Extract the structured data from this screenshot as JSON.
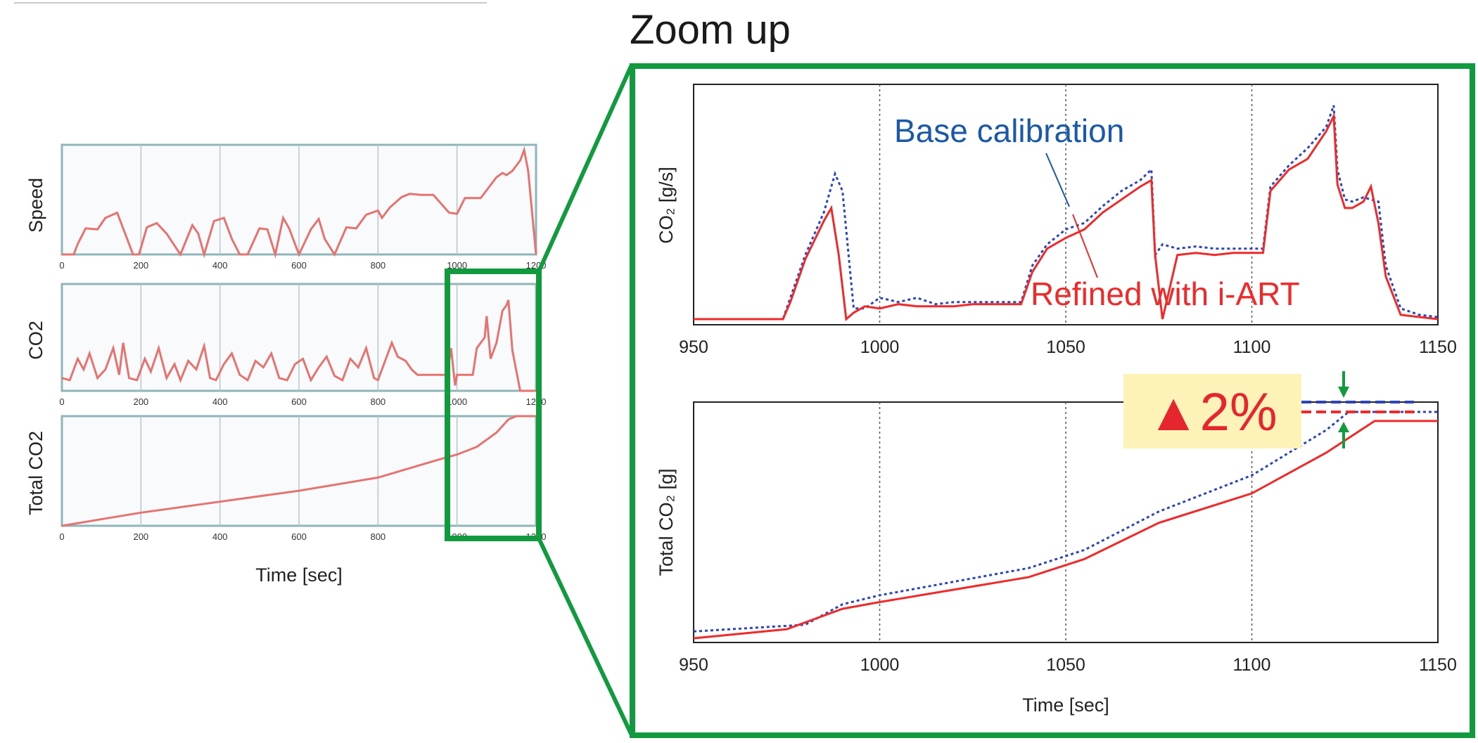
{
  "zoom_title": "Zoom up",
  "colors": {
    "frame": "#129a3e",
    "base_series": "#2b45b8",
    "refined_series": "#ee2a2a",
    "base_annotation_text": "#1a58a8",
    "refined_annotation_text": "#ee2a2a",
    "badge_bg": "#fdf2b8",
    "badge_text": "#e5262e",
    "overview_line": "#e5736f",
    "overview_frame": "#8fb5b8",
    "overview_plot_bg": "#f8fafc",
    "axis": "#222222"
  },
  "chart_data": [
    {
      "id": "overview-speed",
      "type": "line",
      "ylabel": "Speed",
      "xlim": [
        0,
        1200
      ],
      "xticks": [
        "0",
        "200",
        "400",
        "600",
        "800",
        "1000",
        "1200"
      ],
      "series": [
        {
          "x": [
            0,
            30,
            40,
            60,
            90,
            110,
            140,
            165,
            180,
            195,
            215,
            240,
            265,
            300,
            330,
            345,
            360,
            385,
            410,
            430,
            450,
            470,
            500,
            520,
            540,
            560,
            575,
            600,
            630,
            650,
            665,
            690,
            720,
            745,
            770,
            800,
            810,
            830,
            860,
            880,
            910,
            940,
            980,
            1000,
            1020,
            1060,
            1080,
            1100,
            1115,
            1125,
            1140,
            1160,
            1170,
            1180,
            1190,
            1200
          ],
          "values": [
            0,
            0,
            10,
            25,
            24,
            35,
            40,
            15,
            0,
            0,
            26,
            30,
            20,
            0,
            28,
            20,
            0,
            32,
            35,
            15,
            0,
            0,
            25,
            24,
            0,
            35,
            25,
            0,
            24,
            34,
            15,
            0,
            26,
            25,
            38,
            42,
            35,
            45,
            55,
            58,
            57,
            57,
            40,
            39,
            54,
            54,
            64,
            74,
            78,
            76,
            80,
            90,
            100,
            80,
            40,
            0
          ]
        }
      ]
    },
    {
      "id": "overview-co2",
      "type": "line",
      "ylabel": "CO2",
      "xlim": [
        0,
        1200
      ],
      "xticks": [
        "0",
        "200",
        "400",
        "600",
        "800",
        "1000",
        "1200"
      ],
      "series": [
        {
          "x": [
            0,
            20,
            40,
            55,
            70,
            90,
            110,
            130,
            145,
            155,
            170,
            190,
            210,
            225,
            245,
            265,
            285,
            300,
            320,
            340,
            360,
            375,
            390,
            410,
            430,
            450,
            470,
            490,
            510,
            530,
            550,
            570,
            590,
            610,
            630,
            650,
            670,
            690,
            710,
            730,
            750,
            770,
            790,
            800,
            820,
            835,
            850,
            870,
            885,
            900,
            920,
            950,
            975,
            985,
            995,
            1000,
            1040,
            1050,
            1070,
            1075,
            1085,
            1100,
            1115,
            1125,
            1130,
            1140,
            1160,
            1200
          ],
          "values": [
            0.12,
            0.1,
            0.3,
            0.2,
            0.35,
            0.12,
            0.2,
            0.4,
            0.15,
            0.45,
            0.12,
            0.1,
            0.3,
            0.18,
            0.4,
            0.12,
            0.25,
            0.1,
            0.28,
            0.2,
            0.42,
            0.12,
            0.1,
            0.25,
            0.35,
            0.15,
            0.1,
            0.28,
            0.22,
            0.35,
            0.12,
            0.1,
            0.25,
            0.3,
            0.1,
            0.22,
            0.32,
            0.14,
            0.1,
            0.3,
            0.22,
            0.4,
            0.12,
            0.1,
            0.3,
            0.45,
            0.32,
            0.28,
            0.2,
            0.15,
            0.15,
            0.15,
            0.15,
            0.4,
            0.05,
            0.15,
            0.15,
            0.4,
            0.5,
            0.7,
            0.3,
            0.45,
            0.75,
            0.8,
            0.85,
            0.38,
            0.0,
            0.0
          ]
        }
      ]
    },
    {
      "id": "overview-total-co2",
      "type": "line",
      "ylabel": "Total CO2",
      "xlabel": "Time [sec]",
      "xlim": [
        0,
        1200
      ],
      "xticks": [
        "0",
        "200",
        "400",
        "600",
        "800",
        "1000",
        "1200"
      ],
      "series": [
        {
          "x": [
            0,
            200,
            400,
            600,
            800,
            950,
            1000,
            1050,
            1100,
            1130,
            1150,
            1200
          ],
          "values": [
            0,
            0.12,
            0.22,
            0.32,
            0.44,
            0.6,
            0.65,
            0.72,
            0.85,
            0.97,
            1.0,
            1.0
          ]
        }
      ]
    },
    {
      "id": "zoom-co2-rate",
      "type": "line",
      "ylabel": "CO₂ [g/s]",
      "xlim": [
        950,
        1150
      ],
      "ylim": [
        0,
        1
      ],
      "xticks": [
        "950",
        "1000",
        "1050",
        "1100",
        "1150"
      ],
      "grid_x": [
        1000,
        1050,
        1100
      ],
      "series": [
        {
          "name_key": "annotations.base",
          "x": [
            950,
            974,
            976,
            980,
            985,
            988,
            990,
            993,
            996,
            1000,
            1005,
            1010,
            1015,
            1020,
            1025,
            1030,
            1035,
            1038,
            1041,
            1045,
            1050,
            1055,
            1060,
            1065,
            1070,
            1073,
            1074,
            1076,
            1080,
            1085,
            1090,
            1095,
            1100,
            1103,
            1105,
            1110,
            1115,
            1120,
            1122,
            1123,
            1125,
            1127,
            1130,
            1132,
            1134,
            1136,
            1140,
            1145,
            1150
          ],
          "values": [
            0.0,
            0.0,
            0.1,
            0.3,
            0.5,
            0.68,
            0.6,
            0.05,
            0.05,
            0.1,
            0.08,
            0.1,
            0.07,
            0.08,
            0.08,
            0.08,
            0.08,
            0.08,
            0.25,
            0.35,
            0.42,
            0.45,
            0.53,
            0.6,
            0.65,
            0.7,
            0.3,
            0.35,
            0.33,
            0.34,
            0.33,
            0.33,
            0.33,
            0.33,
            0.62,
            0.72,
            0.8,
            0.9,
            1.0,
            0.7,
            0.56,
            0.55,
            0.57,
            0.56,
            0.55,
            0.25,
            0.05,
            0.02,
            0.01
          ]
        },
        {
          "name_key": "annotations.refined",
          "x": [
            950,
            974,
            976,
            980,
            985,
            987,
            989,
            991,
            993,
            996,
            1000,
            1005,
            1010,
            1015,
            1020,
            1025,
            1030,
            1035,
            1038,
            1041,
            1045,
            1050,
            1055,
            1060,
            1065,
            1070,
            1073,
            1074,
            1076,
            1080,
            1085,
            1090,
            1095,
            1100,
            1103,
            1105,
            1110,
            1115,
            1120,
            1122,
            1123,
            1125,
            1127,
            1130,
            1132,
            1134,
            1136,
            1140,
            1145,
            1150
          ],
          "values": [
            0.0,
            0.0,
            0.08,
            0.28,
            0.46,
            0.52,
            0.3,
            0.0,
            0.03,
            0.06,
            0.05,
            0.07,
            0.06,
            0.06,
            0.06,
            0.07,
            0.07,
            0.07,
            0.07,
            0.22,
            0.33,
            0.38,
            0.42,
            0.5,
            0.56,
            0.62,
            0.65,
            0.3,
            0.0,
            0.3,
            0.31,
            0.3,
            0.31,
            0.31,
            0.31,
            0.6,
            0.7,
            0.75,
            0.88,
            0.95,
            0.63,
            0.52,
            0.52,
            0.55,
            0.62,
            0.45,
            0.2,
            0.02,
            0.01,
            0.0
          ]
        }
      ]
    },
    {
      "id": "zoom-total-co2",
      "type": "line",
      "ylabel": "Total CO₂ [g]",
      "xlabel": "Time [sec]",
      "xlim": [
        950,
        1150
      ],
      "ylim": [
        0,
        1
      ],
      "xticks": [
        "950",
        "1000",
        "1050",
        "1100",
        "1150"
      ],
      "grid_x": [
        1000,
        1050,
        1100
      ],
      "series": [
        {
          "name_key": "annotations.base",
          "x": [
            950,
            980,
            990,
            1000,
            1040,
            1055,
            1075,
            1100,
            1120,
            1126,
            1150
          ],
          "values": [
            0.03,
            0.06,
            0.15,
            0.19,
            0.31,
            0.39,
            0.56,
            0.72,
            0.92,
            1.0,
            1.0
          ]
        },
        {
          "name_key": "annotations.refined",
          "x": [
            950,
            975,
            990,
            1000,
            1040,
            1055,
            1075,
            1100,
            1120,
            1133,
            1150
          ],
          "values": [
            0.0,
            0.04,
            0.13,
            0.16,
            0.27,
            0.35,
            0.51,
            0.64,
            0.82,
            0.96,
            0.96
          ]
        }
      ],
      "badge": "▲2%"
    }
  ],
  "annotations": {
    "base": "Base calibration",
    "refined": "Refined with i-ART"
  }
}
